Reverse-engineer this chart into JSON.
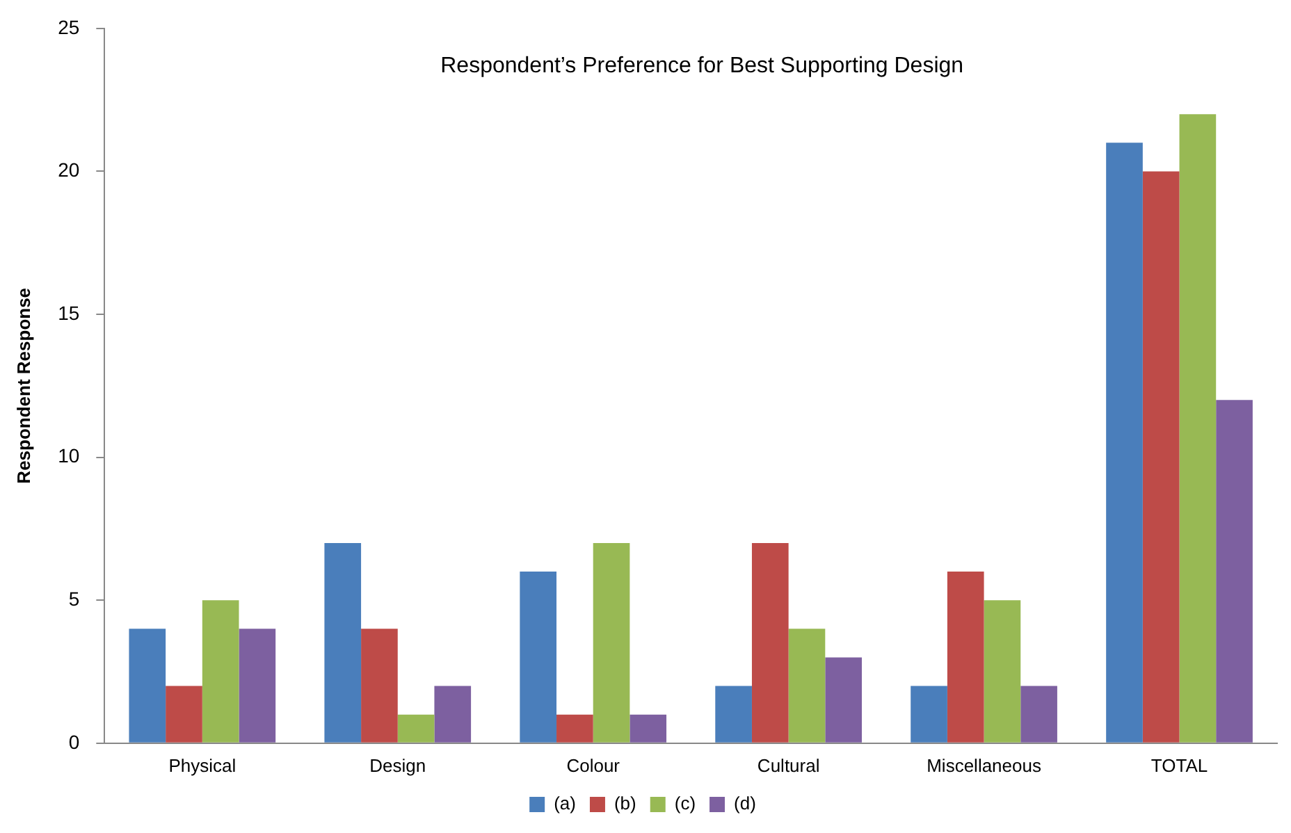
{
  "chart_data": {
    "type": "bar",
    "title": "Respondent’s Preference for Best Supporting Design",
    "ylabel": "Respondent Response",
    "categories": [
      "Physical",
      "Design",
      "Colour",
      "Cultural",
      "Miscellaneous",
      "TOTAL"
    ],
    "series": [
      {
        "name": "(a)",
        "color": "#4a7ebb",
        "values": [
          4,
          7,
          6,
          2,
          2,
          21
        ]
      },
      {
        "name": "(b)",
        "color": "#be4b48",
        "values": [
          2,
          4,
          1,
          7,
          6,
          20
        ]
      },
      {
        "name": "(c)",
        "color": "#98b954",
        "values": [
          5,
          1,
          7,
          4,
          5,
          22
        ]
      },
      {
        "name": "(d)",
        "color": "#7d60a0",
        "values": [
          4,
          2,
          1,
          3,
          2,
          12
        ]
      }
    ],
    "ylim": [
      0,
      25
    ],
    "yticks": [
      0,
      5,
      10,
      15,
      20,
      25
    ],
    "grid": false,
    "legend": "bottom"
  }
}
